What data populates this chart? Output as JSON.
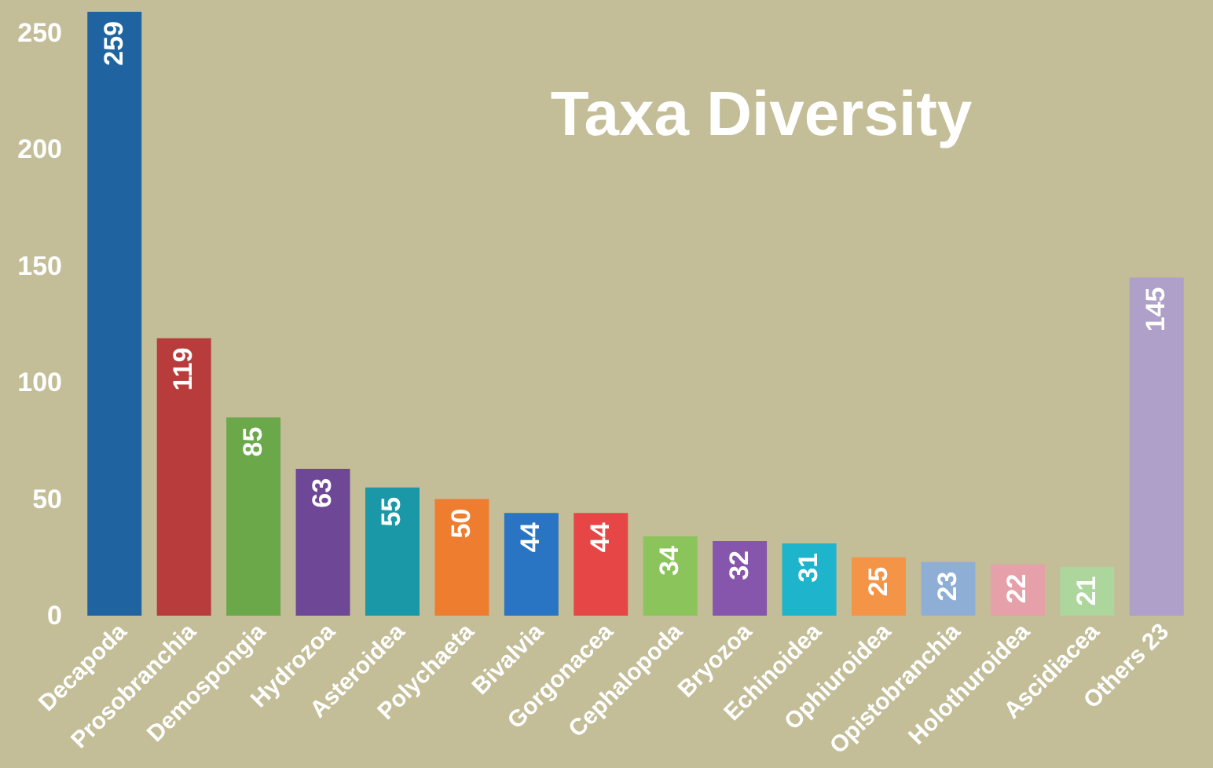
{
  "chart_data": {
    "type": "bar",
    "title": "Taxa Diversity",
    "categories": [
      "Decapoda",
      "Prosobranchia",
      "Demospongia",
      "Hydrozoa",
      "Asteroidea",
      "Polychaeta",
      "Bivalvia",
      "Gorgonacea",
      "Cephalopoda",
      "Bryozoa",
      "Echinoidea",
      "Ophiuroidea",
      "Opistobranchia",
      "Holothuroidea",
      "Ascidiacea",
      "Others 23"
    ],
    "values": [
      259,
      119,
      85,
      63,
      55,
      50,
      44,
      44,
      34,
      32,
      31,
      25,
      23,
      22,
      21,
      145
    ],
    "colors": [
      "#1f64a0",
      "#b83c3c",
      "#6aa84a",
      "#6e4896",
      "#1a98a8",
      "#ee7d30",
      "#2a74c4",
      "#e64646",
      "#8cc45c",
      "#8656ac",
      "#1eb4cc",
      "#f49446",
      "#8eaed6",
      "#e6a0aa",
      "#acd69c",
      "#aea0c8"
    ],
    "ylim": [
      0,
      260
    ],
    "yticks": [
      0,
      50,
      100,
      150,
      200,
      250
    ],
    "data_labels": true
  }
}
